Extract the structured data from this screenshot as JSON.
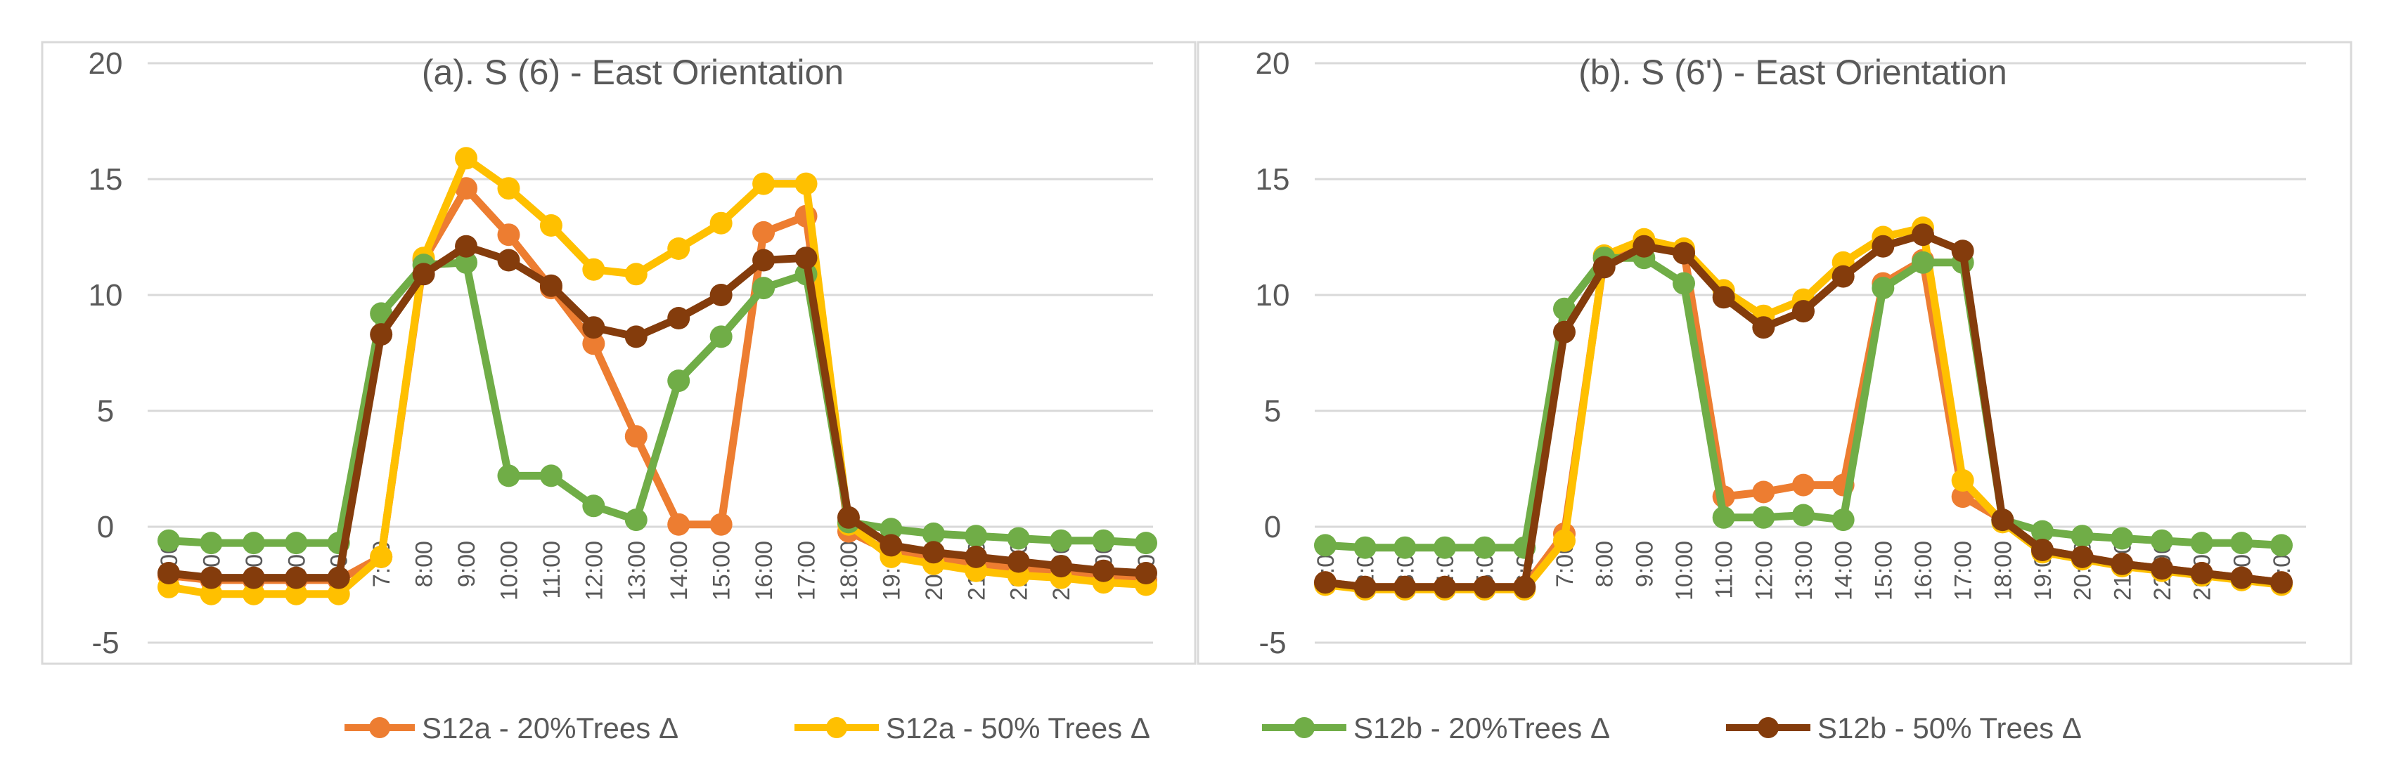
{
  "chart_data": [
    {
      "type": "line",
      "title": "(a). S (6) - East Orientation",
      "xlabel": "",
      "ylabel": "",
      "ylim": [
        -5,
        20
      ],
      "yticks": [
        -5,
        0,
        5,
        10,
        15,
        20
      ],
      "grid": true,
      "categories": [
        "2:00",
        "3:00",
        "4:00",
        "5:00",
        "6:00",
        "7:00",
        "8:00",
        "9:00",
        "10:00",
        "11:00",
        "12:00",
        "13:00",
        "14:00",
        "15:00",
        "16:00",
        "17:00",
        "18:00",
        "19:00",
        "20:00",
        "21:00",
        "22:00",
        "23:00",
        "0:00",
        "1:00"
      ],
      "series": [
        {
          "name": "S12a - 20%Trees Δ",
          "color": "#ED7D31",
          "values": [
            -2.1,
            -2.3,
            -2.3,
            -2.3,
            -2.3,
            -1.3,
            11.5,
            14.6,
            12.6,
            10.3,
            7.9,
            3.9,
            0.1,
            0.1,
            12.7,
            13.4,
            -0.2,
            -1.1,
            -1.4,
            -1.6,
            -1.8,
            -2.0,
            -2.1,
            -2.3
          ]
        },
        {
          "name": "S12a - 50% Trees Δ",
          "color": "#FFC000",
          "values": [
            -2.6,
            -2.9,
            -2.9,
            -2.9,
            -2.9,
            -1.3,
            11.6,
            15.9,
            14.6,
            13.0,
            11.1,
            10.9,
            12.0,
            13.1,
            14.8,
            14.8,
            0.1,
            -1.3,
            -1.6,
            -1.9,
            -2.1,
            -2.2,
            -2.4,
            -2.5
          ]
        },
        {
          "name": "S12b - 20%Trees Δ",
          "color": "#70AD47",
          "values": [
            -0.6,
            -0.7,
            -0.7,
            -0.7,
            -0.7,
            9.2,
            11.3,
            11.4,
            2.2,
            2.2,
            0.9,
            0.3,
            6.3,
            8.2,
            10.3,
            10.9,
            0.2,
            -0.1,
            -0.3,
            -0.4,
            -0.5,
            -0.6,
            -0.6,
            -0.7
          ]
        },
        {
          "name": "S12b - 50% Trees Δ",
          "color": "#843C0C",
          "values": [
            -2.0,
            -2.2,
            -2.2,
            -2.2,
            -2.2,
            8.3,
            10.9,
            12.1,
            11.5,
            10.4,
            8.6,
            8.2,
            9.0,
            10.0,
            11.5,
            11.6,
            0.4,
            -0.8,
            -1.1,
            -1.3,
            -1.5,
            -1.7,
            -1.9,
            -2.0
          ]
        }
      ]
    },
    {
      "type": "line",
      "title": "(b). S (6') - East Orientation",
      "xlabel": "",
      "ylabel": "",
      "ylim": [
        -5,
        20
      ],
      "yticks": [
        -5,
        0,
        5,
        10,
        15,
        20
      ],
      "grid": true,
      "categories": [
        "1:00",
        "2:00",
        "3:00",
        "4:00",
        "5:00",
        "6:00",
        "7:00",
        "8:00",
        "9:00",
        "10:00",
        "11:00",
        "12:00",
        "13:00",
        "14:00",
        "15:00",
        "16:00",
        "17:00",
        "18:00",
        "19:00",
        "20:00",
        "21:00",
        "22:00",
        "23:00",
        "0:00",
        "1:00"
      ],
      "series": [
        {
          "name": "S12a - 20%Trees Δ",
          "color": "#ED7D31",
          "values": [
            -2.4,
            -2.6,
            -2.6,
            -2.6,
            -2.6,
            -2.6,
            -0.3,
            11.6,
            12.1,
            11.9,
            1.3,
            1.5,
            1.8,
            1.8,
            10.5,
            11.5,
            1.3,
            0.3,
            -1.0,
            -1.3,
            -1.6,
            -1.8,
            -2.0,
            -2.2,
            -2.4
          ]
        },
        {
          "name": "S12a - 50% Trees Δ",
          "color": "#FFC000",
          "values": [
            -2.5,
            -2.7,
            -2.7,
            -2.7,
            -2.7,
            -2.7,
            -0.6,
            11.7,
            12.4,
            12.0,
            10.2,
            9.1,
            9.8,
            11.4,
            12.5,
            12.9,
            2.0,
            0.2,
            -1.1,
            -1.4,
            -1.7,
            -1.9,
            -2.1,
            -2.3,
            -2.5
          ]
        },
        {
          "name": "S12b - 20%Trees Δ",
          "color": "#70AD47",
          "values": [
            -0.8,
            -0.9,
            -0.9,
            -0.9,
            -0.9,
            -0.9,
            9.4,
            11.6,
            11.6,
            10.5,
            0.4,
            0.4,
            0.5,
            0.3,
            10.3,
            11.4,
            11.4,
            0.3,
            -0.2,
            -0.4,
            -0.5,
            -0.6,
            -0.7,
            -0.7,
            -0.8
          ]
        },
        {
          "name": "S12b - 50% Trees Δ",
          "color": "#843C0C",
          "values": [
            -2.4,
            -2.6,
            -2.6,
            -2.6,
            -2.6,
            -2.6,
            8.4,
            11.2,
            12.1,
            11.8,
            9.9,
            8.6,
            9.3,
            10.8,
            12.1,
            12.6,
            11.9,
            0.3,
            -1.0,
            -1.3,
            -1.6,
            -1.8,
            -2.0,
            -2.2,
            -2.4
          ]
        }
      ]
    }
  ],
  "legend": {
    "placement": "bottom",
    "entries": [
      {
        "label": "S12a - 20%Trees Δ",
        "color": "#ED7D31"
      },
      {
        "label": "S12a - 50% Trees Δ",
        "color": "#FFC000"
      },
      {
        "label": "S12b - 20%Trees Δ",
        "color": "#70AD47"
      },
      {
        "label": "S12b - 50% Trees Δ",
        "color": "#843C0C"
      }
    ]
  },
  "colors": {
    "grid": "#D9D9D9",
    "text": "#595959",
    "frame": "#D9D9D9"
  }
}
